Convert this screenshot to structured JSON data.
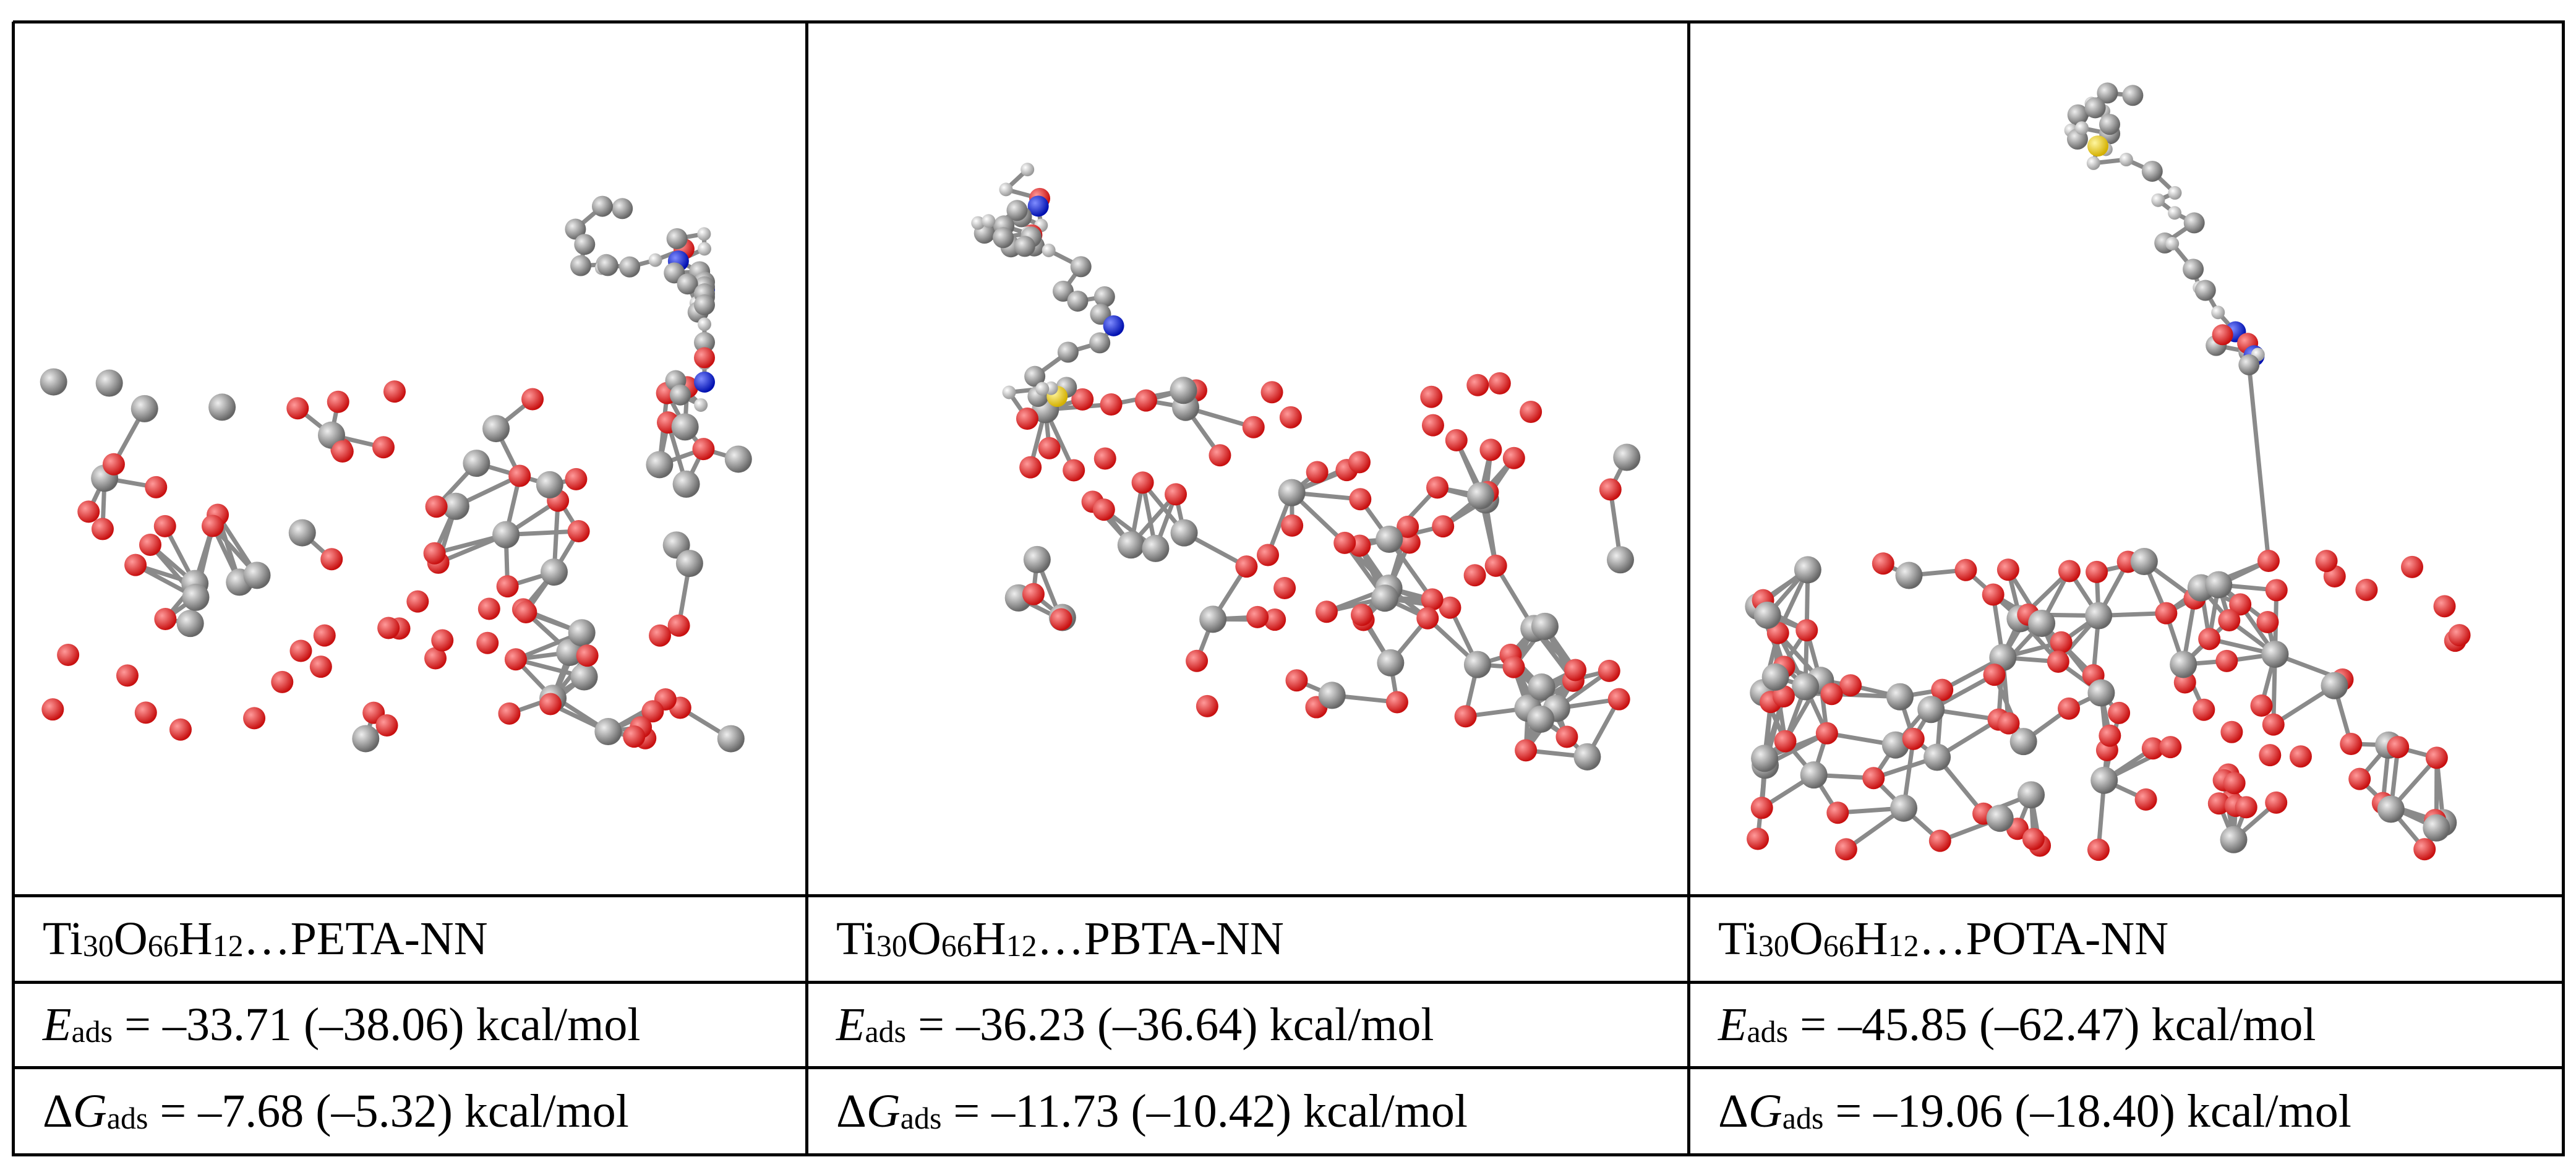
{
  "table": {
    "columns": [
      {
        "label": [
          "Ti",
          "30",
          "O",
          "66",
          "H",
          "12",
          "…PETA-NN"
        ],
        "energy": [
          "E",
          "ads",
          " = –33.71 (–38.06) kcal/mol"
        ],
        "free_energy": [
          "ΔG",
          "ads",
          " = –7.68 (–5.32) kcal/mol"
        ]
      },
      {
        "label": [
          "Ti",
          "30",
          "O",
          "66",
          "H",
          "12",
          "…PBTA-NN"
        ],
        "energy": [
          "E",
          "ads",
          " = –36.23 (–36.64) kcal/mol"
        ],
        "free_energy": [
          "ΔG",
          "ads",
          " = –11.73 (–10.42) kcal/mol"
        ]
      },
      {
        "label": [
          "Ti",
          "30",
          "O",
          "66",
          "H",
          "12",
          "…POTA-NN"
        ],
        "energy": [
          "E",
          "ads",
          " = –45.85 (–62.47) kcal/mol"
        ],
        "free_energy": [
          "ΔG",
          "ads",
          " = –19.06 (–18.40) kcal/mol"
        ]
      }
    ]
  }
}
